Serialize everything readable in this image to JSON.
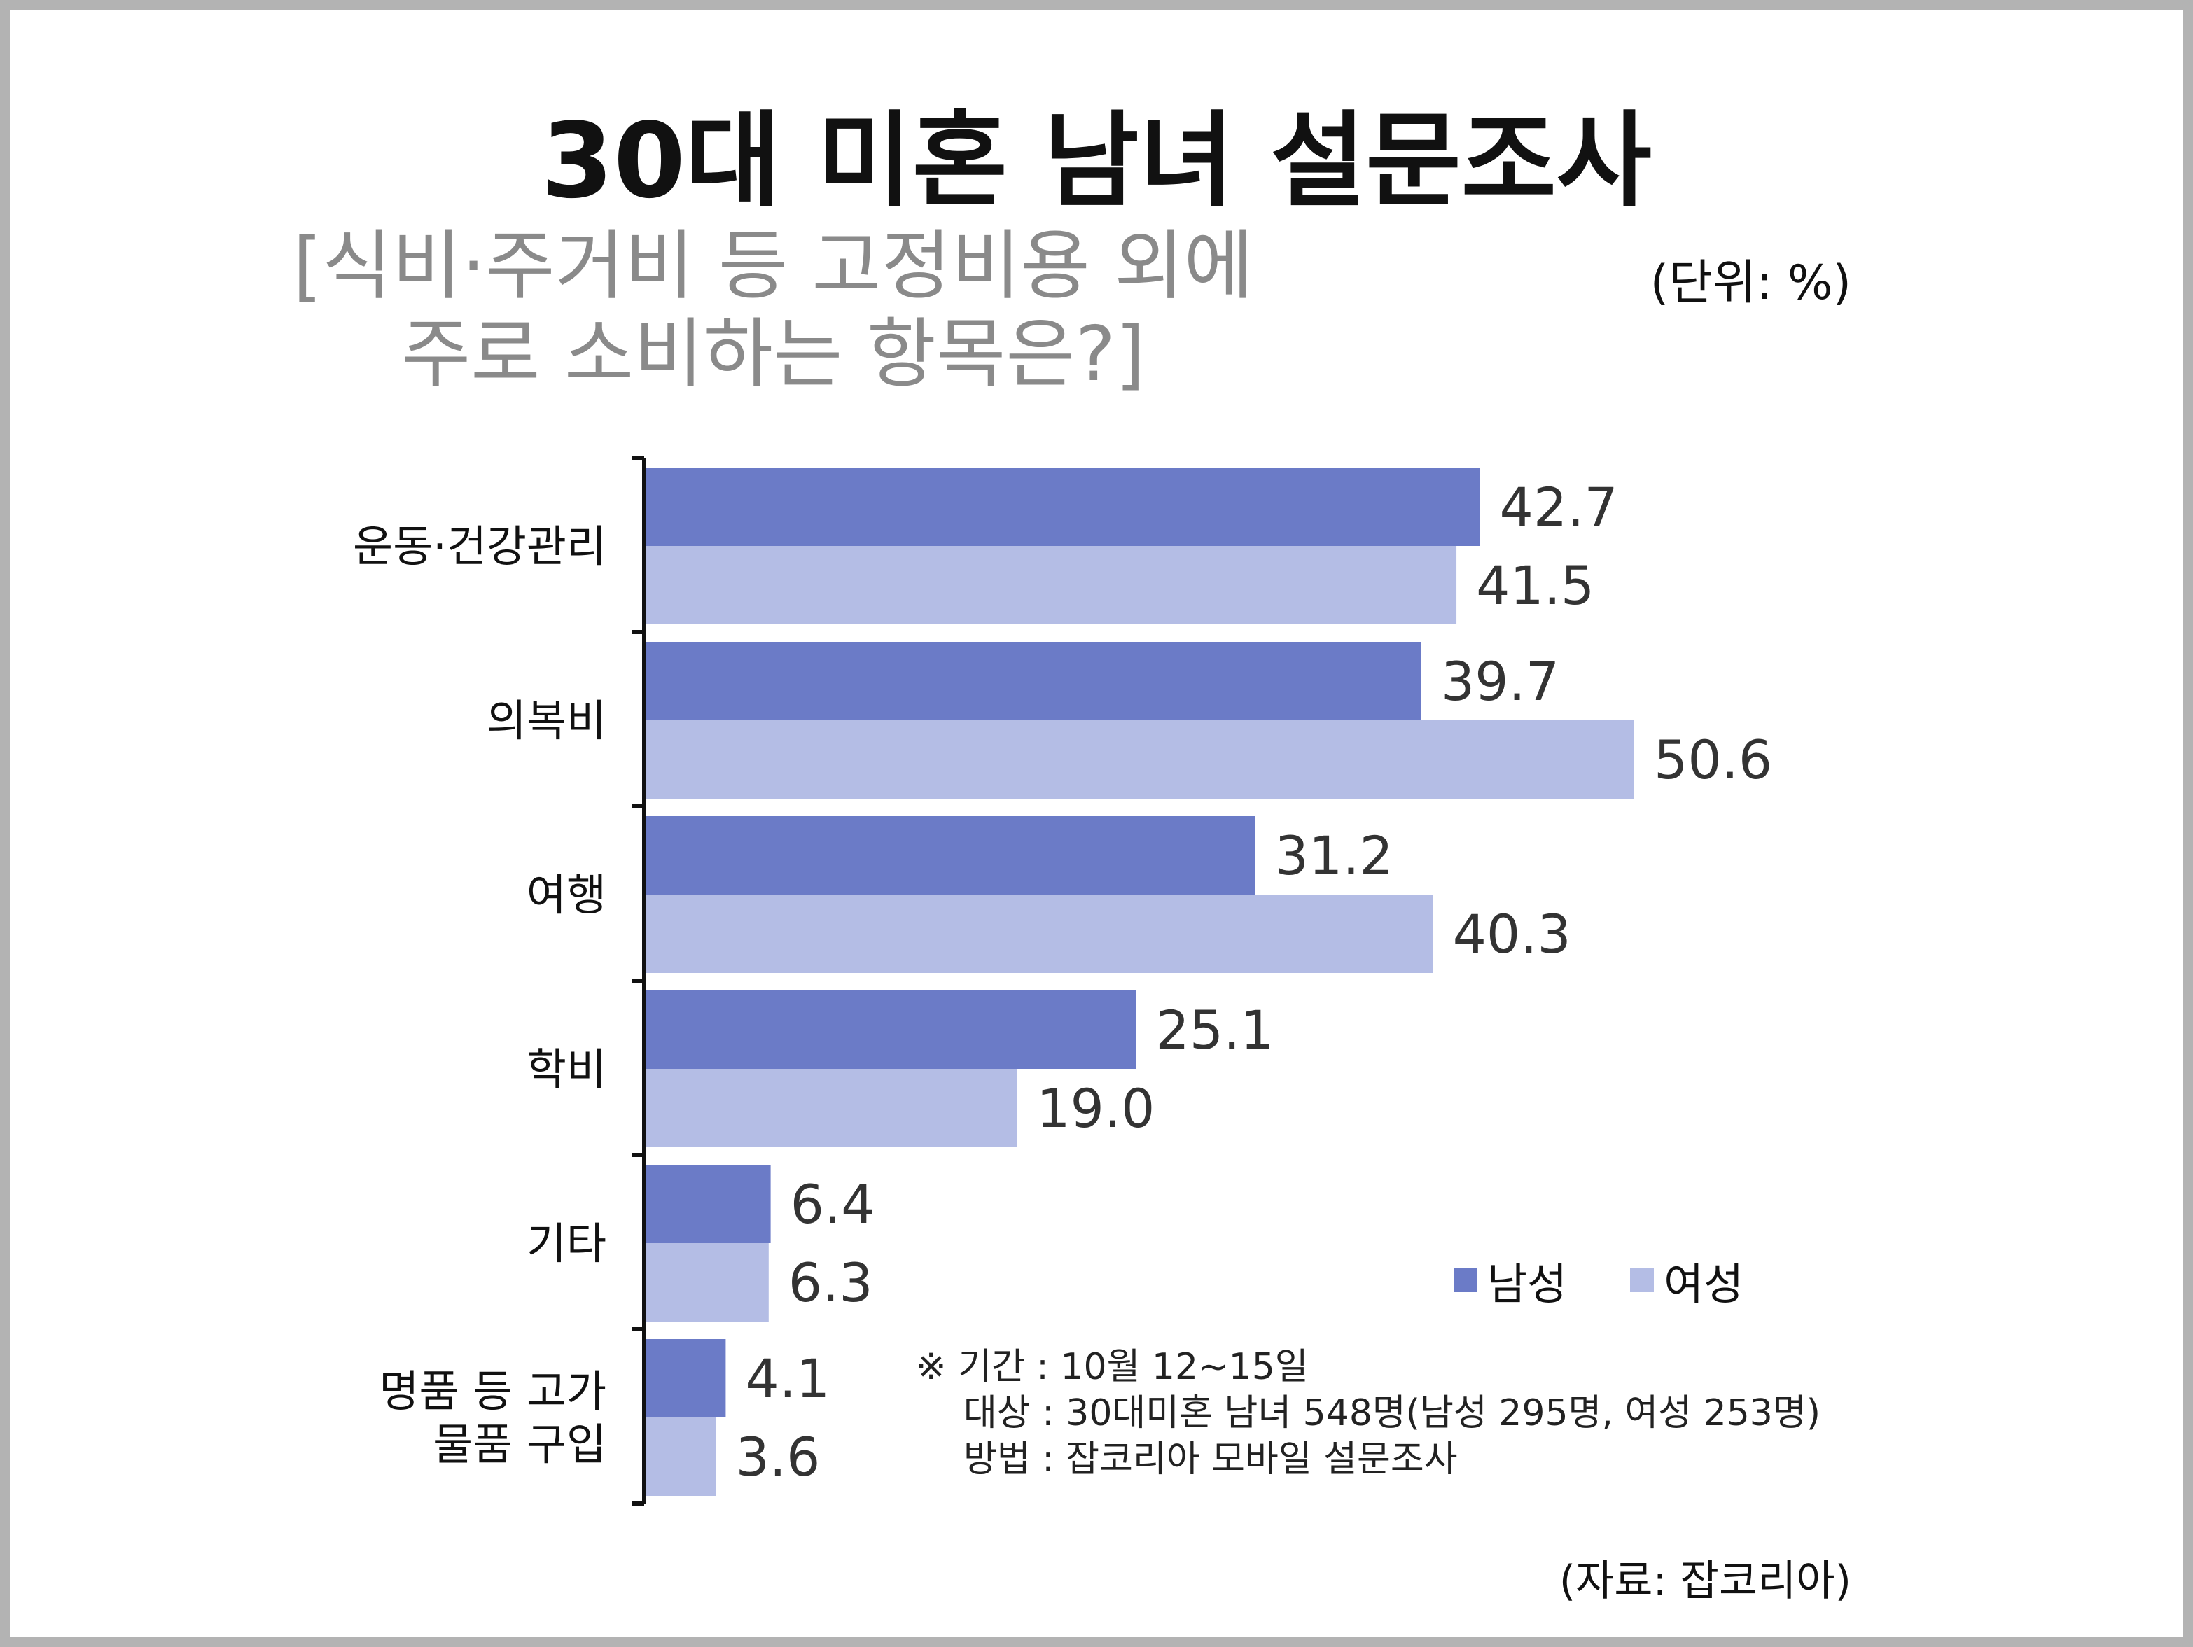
{
  "chart_data": {
    "type": "bar",
    "orientation": "horizontal",
    "title": "30대 미혼 남녀 설문조사",
    "subtitle_lines": [
      "[식비·주거비 등 고정비용 외에",
      "주로 소비하는 항목은?]"
    ],
    "unit": "(단위: %)",
    "categories": [
      [
        "운동·건강관리"
      ],
      [
        "의복비"
      ],
      [
        "여행"
      ],
      [
        "학비"
      ],
      [
        "기타"
      ],
      [
        "명품 등 고가",
        "물품 구입"
      ]
    ],
    "series": [
      {
        "name": "남성",
        "color": "#6b7bc7",
        "values": [
          42.7,
          39.7,
          31.2,
          25.1,
          6.4,
          4.1
        ]
      },
      {
        "name": "여성",
        "color": "#b4bde5",
        "values": [
          41.5,
          50.6,
          40.3,
          19.0,
          6.3,
          3.6
        ]
      }
    ],
    "value_labels": [
      [
        "42.7",
        "39.7",
        "31.2",
        "25.1",
        "6.4",
        "4.1"
      ],
      [
        "41.5",
        "50.6",
        "40.3",
        "19.0",
        "6.3",
        "3.6"
      ]
    ],
    "xlim": [
      0,
      50.6
    ],
    "grid": false,
    "legend_position": "bottom-right",
    "notes": [
      "※ 기간 : 10월 12~15일",
      "대상 : 30대미혼 남녀 548명(남성 295명, 여성 253명)",
      "방법 : 잡코리아 모바일 설문조사"
    ],
    "source": "(자료: 잡코리아)"
  }
}
